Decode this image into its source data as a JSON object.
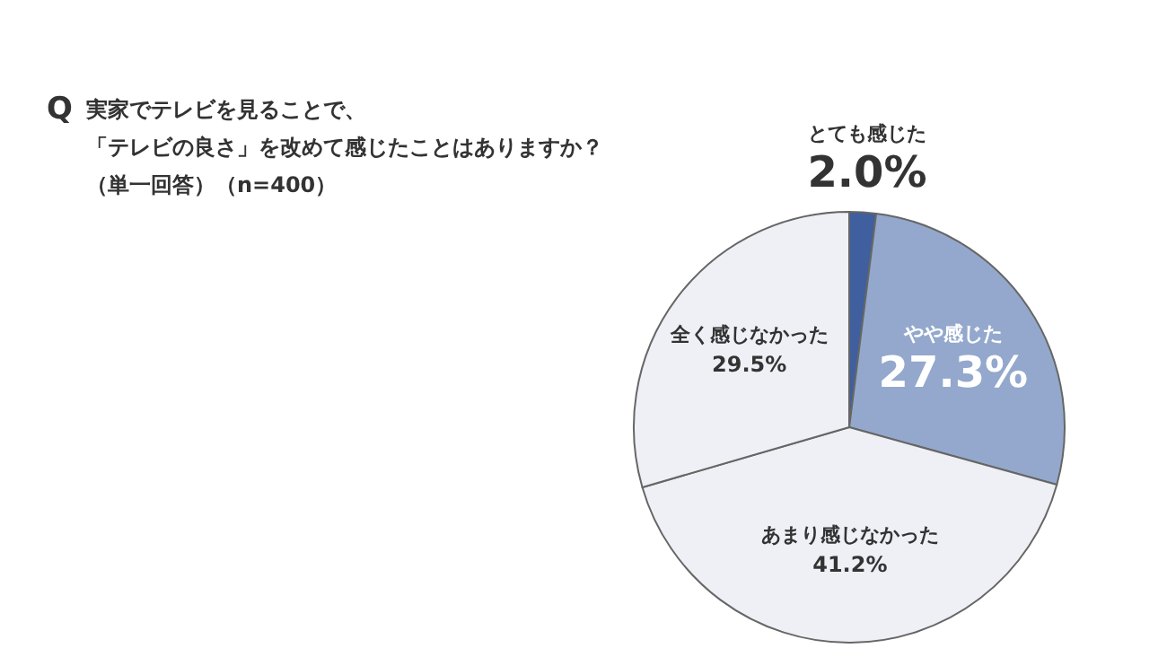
{
  "chart_data": {
    "type": "pie",
    "title": "実家でテレビを見ることで、「テレビの良さ」を改めて感じたことはありますか？",
    "subtitle": "（単一回答）（n=400）",
    "annotations": [
      "Q"
    ],
    "categories": [
      "とても感じた",
      "やや感じた",
      "あまり感じなかった",
      "全く感じなかった"
    ],
    "values": [
      2.0,
      27.3,
      41.2,
      29.5
    ],
    "colors": [
      "#3f5f9f",
      "#93a8cc",
      "#eef0f6",
      "#eef0f6"
    ],
    "value_labels": [
      "2.0%",
      "27.3%",
      "41.2%",
      "29.5%"
    ]
  }
}
